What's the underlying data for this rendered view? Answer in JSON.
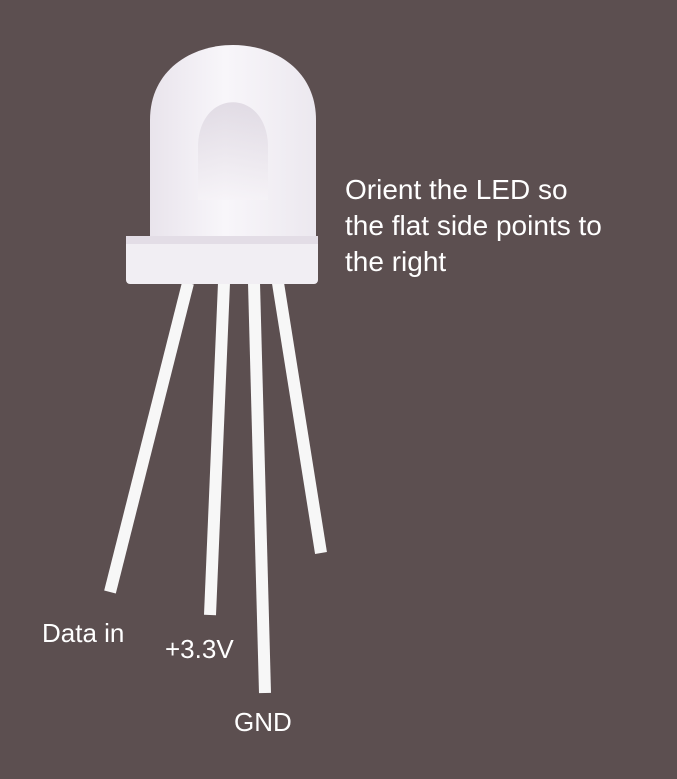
{
  "colors": {
    "background": "#5c4f50",
    "text": "#ffffff",
    "lead": "#f7f7f7",
    "lens": "#f1eef3"
  },
  "instruction": {
    "lines": [
      "Orient the LED so",
      "the flat side points to",
      "the right"
    ]
  },
  "leads": {
    "data_in": "Data in",
    "vcc": "+3.3V",
    "gnd": "GND"
  }
}
